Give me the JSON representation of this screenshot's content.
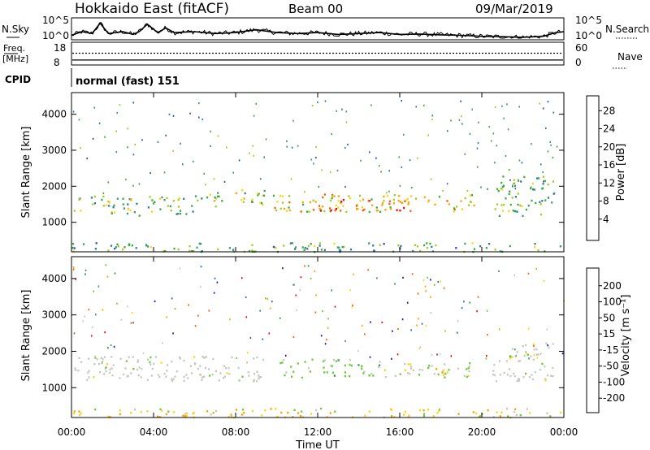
{
  "header": {
    "station": "Hokkaido East (fitACF)",
    "beam": "Beam 00",
    "date": "09/Mar/2019"
  },
  "left_labels": {
    "nsky": "N.Sky",
    "freq_line1": "Freq.",
    "freq_line2": "[MHz]",
    "cpid": "CPID"
  },
  "right_labels": {
    "nsearch": "N.Search",
    "nave": "Nave"
  },
  "cpid_text": "normal (fast) 151",
  "chart_data": [
    {
      "type": "line",
      "panel": "noise",
      "left_ticks": [
        "10^5",
        "10^0"
      ],
      "right_ticks": [
        "10^5",
        "10^0"
      ],
      "x": [
        0,
        0.5,
        1.0,
        1.4,
        1.8,
        2.5,
        3.0,
        3.3,
        3.7,
        4.2,
        4.6,
        5.0,
        6.0,
        7.0,
        8.0,
        9.0,
        10.0,
        11.0,
        12.0,
        13.0,
        14.0,
        15.0,
        16.0,
        17.0,
        18.0,
        19.0,
        20.0,
        21.0,
        22.0,
        23.0,
        23.6,
        24.0
      ],
      "y": [
        0.15,
        0.35,
        0.25,
        0.8,
        0.25,
        0.35,
        0.2,
        0.35,
        0.75,
        0.3,
        0.55,
        0.3,
        0.35,
        0.25,
        0.3,
        0.45,
        0.3,
        0.25,
        0.3,
        0.2,
        0.25,
        0.3,
        0.2,
        0.22,
        0.18,
        0.15,
        0.1,
        0.08,
        0.05,
        0.1,
        0.3,
        0.35
      ]
    },
    {
      "type": "line",
      "panel": "frequency",
      "left_ticks": [
        "18",
        "8"
      ],
      "right_ticks": [
        "60",
        "0"
      ],
      "freq_mhz": 10.2,
      "nave": 31
    },
    {
      "type": "heatmap",
      "panel": "power",
      "ylabel": "Slant Range [km]",
      "y_ticks": [
        "1000",
        "2000",
        "3000",
        "4000"
      ],
      "ylim": [
        180,
        4600
      ],
      "xlim": [
        0,
        24
      ],
      "colorbar": {
        "label": "Power [dB]",
        "ticks": [
          "4",
          "8",
          "12",
          "16",
          "20",
          "24",
          "28"
        ],
        "colors": [
          "#0018ff",
          "#2a4ad0",
          "#2f7a9a",
          "#3f9a6a",
          "#33b133",
          "#a0cc20",
          "#ffd21a",
          "#ffa000",
          "#ff5a00",
          "#ff0000"
        ]
      },
      "regions": [
        {
          "t0": 0.1,
          "t1": 1.8,
          "r0": 1300,
          "r1": 1750,
          "level": 0.45
        },
        {
          "t0": 1.8,
          "t1": 3.7,
          "r0": 1200,
          "r1": 1700,
          "level": 0.5
        },
        {
          "t0": 3.7,
          "t1": 6.3,
          "r0": 1250,
          "r1": 1750,
          "level": 0.45
        },
        {
          "t0": 6.3,
          "t1": 9.4,
          "r0": 1450,
          "r1": 1950,
          "level": 0.5
        },
        {
          "t0": 9.8,
          "t1": 19.8,
          "r0": 1300,
          "r1": 1800,
          "level": 0.65
        },
        {
          "t0": 12.0,
          "t1": 16.5,
          "r0": 1350,
          "r1": 1650,
          "level": 0.85
        },
        {
          "t0": 20.5,
          "t1": 23.5,
          "r0": 1200,
          "r1": 2300,
          "level": 0.45
        },
        {
          "t0": 0.0,
          "t1": 24.0,
          "r0": 200,
          "r1": 450,
          "level": 0.4
        }
      ]
    },
    {
      "type": "heatmap",
      "panel": "velocity",
      "ylabel": "Slant Range [km]",
      "xlabel": "Time UT",
      "x_ticks": [
        "00:00",
        "04:00",
        "08:00",
        "12:00",
        "16:00",
        "20:00",
        "00:00"
      ],
      "y_ticks": [
        "1000",
        "2000",
        "3000",
        "4000"
      ],
      "ylim": [
        180,
        4600
      ],
      "xlim": [
        0,
        24
      ],
      "colorbar": {
        "label": "Velocity [m s⁻¹]",
        "ticks": [
          "200",
          "100",
          "50",
          "15",
          "-15",
          "-50",
          "-100",
          "-200"
        ],
        "colors": [
          "#1010c8",
          "#2a6b9a",
          "#2f9a4a",
          "#66cc33",
          "#c8c8c0",
          "#ffd21a",
          "#ffa000",
          "#ff5a00",
          "#ff0000"
        ]
      },
      "regions": [
        {
          "t0": 0.1,
          "t1": 9.4,
          "r0": 1200,
          "r1": 1900,
          "class": "ground"
        },
        {
          "t0": 9.8,
          "t1": 15.0,
          "r0": 1300,
          "r1": 1800,
          "class": "west_green"
        },
        {
          "t0": 15.0,
          "t1": 19.8,
          "r0": 1300,
          "r1": 1700,
          "class": "mixed"
        },
        {
          "t0": 17.5,
          "t1": 18.8,
          "r0": 1350,
          "r1": 1550,
          "class": "orange"
        },
        {
          "t0": 20.5,
          "t1": 23.5,
          "r0": 1200,
          "r1": 2300,
          "class": "ground"
        },
        {
          "t0": 0.0,
          "t1": 24.0,
          "r0": 200,
          "r1": 450,
          "class": "low_orange"
        }
      ]
    }
  ]
}
